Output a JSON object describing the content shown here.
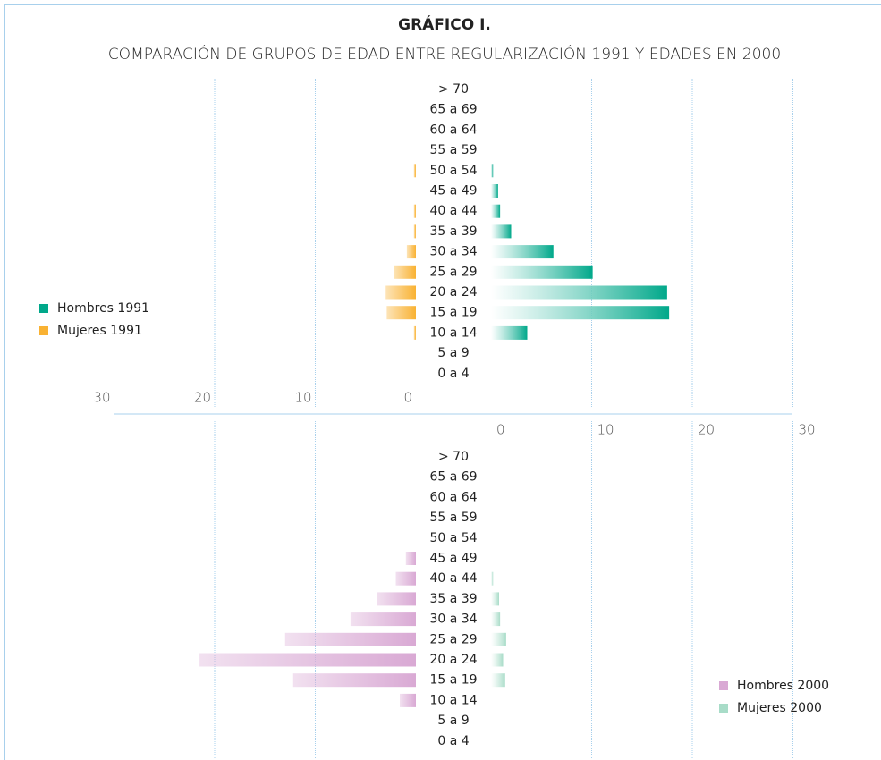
{
  "chart_data": [
    {
      "type": "pyramid",
      "title": "GRÁFICO I.",
      "subtitle": "COMPARACIÓN DE GRUPOS DE EDAD ENTRE REGULARIZACIÓN 1991 Y EDADES EN 2000",
      "categories": [
        "> 70",
        "65 a 69",
        "60 a 64",
        "55 a 59",
        "50 a 54",
        "45 a 49",
        "40 a 44",
        "35 a 39",
        "30 a 34",
        "25 a 29",
        "20 a 24",
        "15 a 19",
        "10 a 14",
        "5 a 9",
        "0 a 4"
      ],
      "series": [
        {
          "name": "Hombres 1991",
          "color": "#00a88a",
          "side": "right",
          "values": [
            0,
            0,
            0,
            0,
            0.2,
            0.7,
            0.9,
            2,
            6.2,
            10.1,
            17.5,
            17.7,
            3.6,
            0,
            0
          ]
        },
        {
          "name": "Mujeres 1991",
          "color": "#f9b233",
          "side": "left",
          "values": [
            0,
            0,
            0,
            0,
            0.2,
            0,
            0.2,
            0.2,
            0.9,
            2.2,
            3,
            2.9,
            0.2,
            0,
            0
          ]
        }
      ],
      "xlim": [
        0,
        30
      ],
      "xticks": [
        0,
        10,
        20,
        30
      ],
      "tick_side": "left",
      "grid": true,
      "legend": "left"
    },
    {
      "type": "pyramid",
      "categories": [
        "> 70",
        "65 a 69",
        "60 a 64",
        "55 a 59",
        "50 a 54",
        "45 a 49",
        "40 a 44",
        "35 a 39",
        "30 a 34",
        "25 a 29",
        "20 a 24",
        "15 a 19",
        "10 a 14",
        "5 a 9",
        "0 a 4"
      ],
      "series": [
        {
          "name": "Hombres 2000",
          "color": "#d9a9d4",
          "side": "left",
          "values": [
            0,
            0,
            0,
            0,
            0,
            1,
            2,
            3.9,
            6.5,
            13,
            21.5,
            12.2,
            1.6,
            0,
            0
          ]
        },
        {
          "name": "Mujeres 2000",
          "color": "#a8dcc8",
          "side": "right",
          "values": [
            0,
            0,
            0,
            0,
            0,
            0,
            0.2,
            0.8,
            0.9,
            1.5,
            1.2,
            1.4,
            0,
            0,
            0
          ]
        }
      ],
      "xlim": [
        0,
        30
      ],
      "xticks": [
        0,
        10,
        20,
        30
      ],
      "tick_side": "right",
      "grid": true,
      "legend": "bottom right"
    }
  ]
}
